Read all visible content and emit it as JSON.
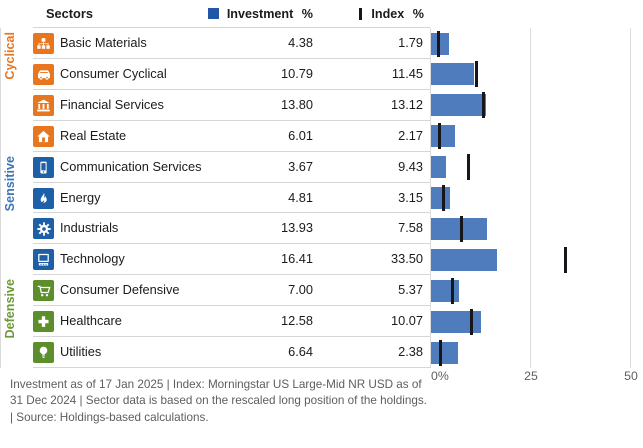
{
  "header": {
    "sectors_label": "Sectors",
    "investment_legend": "Investment %",
    "index_legend": "Index %"
  },
  "groups": [
    {
      "id": "cyclical",
      "label": "Cyclical",
      "label_color": "#e8761f",
      "icon_color": "#e8761f"
    },
    {
      "id": "sensitive",
      "label": "Sensitive",
      "label_color": "#3c75b8",
      "icon_color": "#1e60a8"
    },
    {
      "id": "defensive",
      "label": "Defensive",
      "label_color": "#6c9a34",
      "icon_color": "#5c8f2c"
    }
  ],
  "rows": [
    {
      "sector": "Basic Materials",
      "icon": "basic-materials-icon",
      "group": "cyclical",
      "investment": "4.38",
      "index": "1.79"
    },
    {
      "sector": "Consumer Cyclical",
      "icon": "consumer-cyclical-icon",
      "group": "cyclical",
      "investment": "10.79",
      "index": "11.45"
    },
    {
      "sector": "Financial Services",
      "icon": "financial-services-icon",
      "group": "cyclical",
      "investment": "13.80",
      "index": "13.12"
    },
    {
      "sector": "Real Estate",
      "icon": "real-estate-icon",
      "group": "cyclical",
      "investment": "6.01",
      "index": "2.17"
    },
    {
      "sector": "Communication Services",
      "icon": "communication-services-icon",
      "group": "sensitive",
      "investment": "3.67",
      "index": "9.43"
    },
    {
      "sector": "Energy",
      "icon": "energy-icon",
      "group": "sensitive",
      "investment": "4.81",
      "index": "3.15"
    },
    {
      "sector": "Industrials",
      "icon": "industrials-icon",
      "group": "sensitive",
      "investment": "13.93",
      "index": "7.58"
    },
    {
      "sector": "Technology",
      "icon": "technology-icon",
      "group": "sensitive",
      "investment": "16.41",
      "index": "33.50"
    },
    {
      "sector": "Consumer Defensive",
      "icon": "consumer-defensive-icon",
      "group": "defensive",
      "investment": "7.00",
      "index": "5.37"
    },
    {
      "sector": "Healthcare",
      "icon": "healthcare-icon",
      "group": "defensive",
      "investment": "12.58",
      "index": "10.07"
    },
    {
      "sector": "Utilities",
      "icon": "utilities-icon",
      "group": "defensive",
      "investment": "6.64",
      "index": "2.38"
    }
  ],
  "chart_data": {
    "type": "bar",
    "orientation": "horizontal",
    "categories": [
      "Basic Materials",
      "Consumer Cyclical",
      "Financial Services",
      "Real Estate",
      "Communication Services",
      "Energy",
      "Industrials",
      "Technology",
      "Consumer Defensive",
      "Healthcare",
      "Utilities"
    ],
    "series": [
      {
        "name": "Investment %",
        "style": "bar",
        "color": "#4e7cbc",
        "values": [
          4.38,
          10.79,
          13.8,
          6.01,
          3.67,
          4.81,
          13.93,
          16.41,
          7.0,
          12.58,
          6.64
        ]
      },
      {
        "name": "Index %",
        "style": "tick",
        "color": "#17171b",
        "values": [
          1.79,
          11.45,
          13.12,
          2.17,
          9.43,
          3.15,
          7.58,
          33.5,
          5.37,
          10.07,
          2.38
        ]
      }
    ],
    "xlim": [
      0,
      50
    ],
    "x_tick_labels": [
      "0%",
      "25",
      "50"
    ],
    "grid": "vertical-gridlines-at-0-25-50",
    "legend_position": "top"
  },
  "axis": {
    "ticks": [
      "0%",
      "25",
      "50"
    ]
  },
  "footer": {
    "text": "Investment as of 17 Jan 2025 | Index: Morningstar US Large-Mid NR USD as of\n31 Dec 2024 | Sector data is based on the rescaled long position of the holdings.\n| Source: Holdings-based calculations."
  },
  "colors": {
    "bar": "#4e7cbc",
    "index_tick": "#17171b",
    "legend_square": "#2257a5",
    "gridline": "#dcdcdc",
    "row_separator": "#d6d6d6",
    "muted_text": "#5e5e5e"
  }
}
